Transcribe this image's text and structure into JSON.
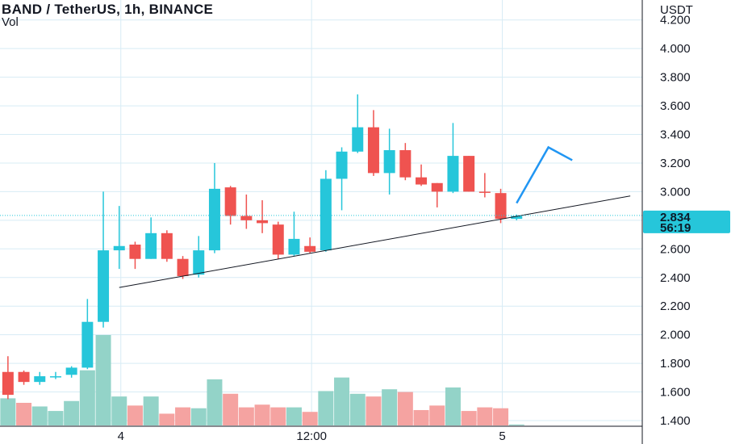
{
  "legend": {
    "title": "BAND / TetherUS, 1h, BINANCE",
    "vol_label": "Vol"
  },
  "colors": {
    "up": "#26c6da",
    "down": "#ef5350",
    "vol_up": "#93d3c8",
    "vol_down": "#f5a3a1",
    "grid": "#d7ecf5",
    "price_tag_bg": "#26c6da",
    "arrow": "#2196f3",
    "trendline": "#131722"
  },
  "chart_data": {
    "type": "candlestick",
    "symbol": "BAND / TetherUS",
    "interval": "1h",
    "exchange": "BINANCE",
    "y_axis": {
      "unit": "USDT",
      "range": [
        1.4,
        4.3
      ],
      "ticks": [
        "4.200",
        "4.000",
        "3.800",
        "3.600",
        "3.400",
        "3.200",
        "3.000",
        "2.600",
        "2.400",
        "2.200",
        "2.000",
        "1.800",
        "1.600",
        "1.400"
      ]
    },
    "x_axis": {
      "ticks": [
        {
          "label": "4",
          "index": 7.5
        },
        {
          "label": "12:00",
          "index": 19.5
        },
        {
          "label": "5",
          "index": 31.5
        }
      ]
    },
    "last_price": {
      "price": "2.834",
      "countdown": "56:19",
      "value": 2.834
    },
    "candles": [
      {
        "o": 1.74,
        "h": 1.85,
        "l": 1.55,
        "c": 1.58,
        "dir": "down"
      },
      {
        "o": 1.74,
        "h": 1.75,
        "l": 1.65,
        "c": 1.67,
        "dir": "down"
      },
      {
        "o": 1.67,
        "h": 1.74,
        "l": 1.65,
        "c": 1.71,
        "dir": "up"
      },
      {
        "o": 1.71,
        "h": 1.74,
        "l": 1.69,
        "c": 1.71,
        "dir": "up"
      },
      {
        "o": 1.72,
        "h": 1.78,
        "l": 1.7,
        "c": 1.77,
        "dir": "up"
      },
      {
        "o": 1.77,
        "h": 2.25,
        "l": 1.76,
        "c": 2.09,
        "dir": "up"
      },
      {
        "o": 2.09,
        "h": 3.0,
        "l": 2.05,
        "c": 2.59,
        "dir": "up"
      },
      {
        "o": 2.59,
        "h": 2.9,
        "l": 2.46,
        "c": 2.62,
        "dir": "up"
      },
      {
        "o": 2.63,
        "h": 2.65,
        "l": 2.46,
        "c": 2.53,
        "dir": "down"
      },
      {
        "o": 2.53,
        "h": 2.82,
        "l": 2.53,
        "c": 2.71,
        "dir": "up"
      },
      {
        "o": 2.71,
        "h": 2.73,
        "l": 2.51,
        "c": 2.53,
        "dir": "down"
      },
      {
        "o": 2.53,
        "h": 2.55,
        "l": 2.39,
        "c": 2.41,
        "dir": "down"
      },
      {
        "o": 2.42,
        "h": 2.69,
        "l": 2.4,
        "c": 2.59,
        "dir": "up"
      },
      {
        "o": 2.59,
        "h": 3.2,
        "l": 2.57,
        "c": 3.02,
        "dir": "up"
      },
      {
        "o": 3.03,
        "h": 3.04,
        "l": 2.77,
        "c": 2.83,
        "dir": "down"
      },
      {
        "o": 2.83,
        "h": 2.98,
        "l": 2.74,
        "c": 2.8,
        "dir": "down"
      },
      {
        "o": 2.8,
        "h": 2.94,
        "l": 2.71,
        "c": 2.78,
        "dir": "down"
      },
      {
        "o": 2.77,
        "h": 2.79,
        "l": 2.53,
        "c": 2.56,
        "dir": "down"
      },
      {
        "o": 2.56,
        "h": 2.86,
        "l": 2.55,
        "c": 2.67,
        "dir": "up"
      },
      {
        "o": 2.62,
        "h": 2.68,
        "l": 2.57,
        "c": 2.58,
        "dir": "down"
      },
      {
        "o": 2.59,
        "h": 3.15,
        "l": 2.58,
        "c": 3.09,
        "dir": "up"
      },
      {
        "o": 3.09,
        "h": 3.31,
        "l": 2.87,
        "c": 3.28,
        "dir": "up"
      },
      {
        "o": 3.28,
        "h": 3.68,
        "l": 3.27,
        "c": 3.45,
        "dir": "up"
      },
      {
        "o": 3.45,
        "h": 3.57,
        "l": 3.11,
        "c": 3.13,
        "dir": "down"
      },
      {
        "o": 3.13,
        "h": 3.44,
        "l": 2.98,
        "c": 3.29,
        "dir": "up"
      },
      {
        "o": 3.29,
        "h": 3.34,
        "l": 3.08,
        "c": 3.1,
        "dir": "down"
      },
      {
        "o": 3.1,
        "h": 3.19,
        "l": 3.04,
        "c": 3.05,
        "dir": "down"
      },
      {
        "o": 3.06,
        "h": 3.06,
        "l": 2.89,
        "c": 3.0,
        "dir": "down"
      },
      {
        "o": 3.0,
        "h": 3.48,
        "l": 2.99,
        "c": 3.25,
        "dir": "up"
      },
      {
        "o": 3.25,
        "h": 3.25,
        "l": 3.0,
        "c": 3.0,
        "dir": "down"
      },
      {
        "o": 3.0,
        "h": 3.13,
        "l": 2.96,
        "c": 3.0,
        "dir": "down"
      },
      {
        "o": 2.99,
        "h": 3.02,
        "l": 2.78,
        "c": 2.81,
        "dir": "down"
      },
      {
        "o": 2.81,
        "h": 2.84,
        "l": 2.8,
        "c": 2.83,
        "dir": "up"
      }
    ],
    "volume": [
      {
        "v": 30,
        "dir": "up"
      },
      {
        "v": 25,
        "dir": "down"
      },
      {
        "v": 21,
        "dir": "up"
      },
      {
        "v": 16,
        "dir": "up"
      },
      {
        "v": 27,
        "dir": "up"
      },
      {
        "v": 61,
        "dir": "up"
      },
      {
        "v": 100,
        "dir": "up"
      },
      {
        "v": 32,
        "dir": "up"
      },
      {
        "v": 22,
        "dir": "down"
      },
      {
        "v": 32,
        "dir": "up"
      },
      {
        "v": 13,
        "dir": "down"
      },
      {
        "v": 20,
        "dir": "down"
      },
      {
        "v": 19,
        "dir": "up"
      },
      {
        "v": 51,
        "dir": "up"
      },
      {
        "v": 35,
        "dir": "down"
      },
      {
        "v": 20,
        "dir": "down"
      },
      {
        "v": 23,
        "dir": "down"
      },
      {
        "v": 20,
        "dir": "down"
      },
      {
        "v": 20,
        "dir": "up"
      },
      {
        "v": 15,
        "dir": "down"
      },
      {
        "v": 38,
        "dir": "up"
      },
      {
        "v": 53,
        "dir": "up"
      },
      {
        "v": 35,
        "dir": "up"
      },
      {
        "v": 32,
        "dir": "down"
      },
      {
        "v": 40,
        "dir": "up"
      },
      {
        "v": 37,
        "dir": "down"
      },
      {
        "v": 17,
        "dir": "down"
      },
      {
        "v": 22,
        "dir": "down"
      },
      {
        "v": 42,
        "dir": "up"
      },
      {
        "v": 16,
        "dir": "down"
      },
      {
        "v": 20,
        "dir": "down"
      },
      {
        "v": 19,
        "dir": "down"
      },
      {
        "v": 1,
        "dir": "up"
      }
    ],
    "trendline": {
      "from": {
        "index": 7.5,
        "price": 2.33
      },
      "to": {
        "index": 39.5,
        "price": 2.97
      }
    },
    "arrow": {
      "points": [
        {
          "index": 32.5,
          "price": 2.92
        },
        {
          "index": 34.5,
          "price": 3.31
        },
        {
          "index": 36.0,
          "price": 3.22
        }
      ]
    },
    "grid": {
      "vertical": true,
      "horizontal": true
    }
  }
}
